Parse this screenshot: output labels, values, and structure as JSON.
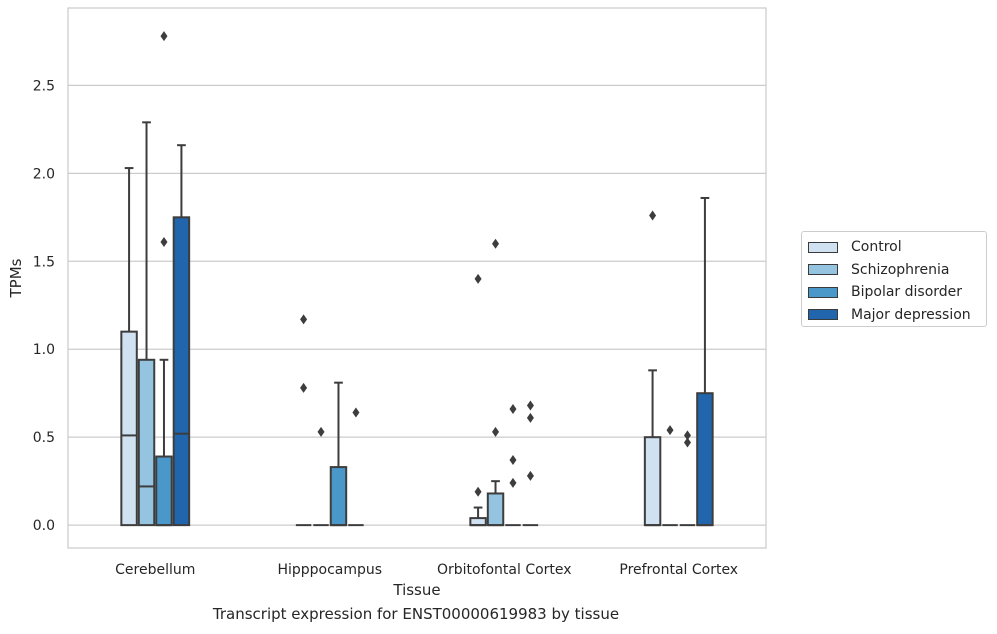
{
  "chart_data": {
    "type": "box",
    "title": "",
    "caption": "Transcript expression for ENST00000619983 by tissue",
    "xlabel": "Tissue",
    "ylabel": "TPMs",
    "ylim": [
      -0.13,
      2.94
    ],
    "yticks": [
      "0.0",
      "0.5",
      "1.0",
      "1.5",
      "2.0",
      "2.5"
    ],
    "grid": "horizontal",
    "legend_position": "right",
    "categories": [
      "Cerebellum",
      "Hipppocampus",
      "Orbitofontal Cortex",
      "Prefrontal Cortex"
    ],
    "series": [
      {
        "name": "Control",
        "color": "#d0e1f2",
        "boxes": [
          {
            "whisker_low": 0,
            "q1": 0,
            "median": 0.51,
            "q3": 1.1,
            "whisker_high": 2.03,
            "outliers": []
          },
          {
            "whisker_low": 0,
            "q1": 0,
            "median": 0,
            "q3": 0,
            "whisker_high": 0,
            "outliers": [
              1.17,
              0.78
            ]
          },
          {
            "whisker_low": 0,
            "q1": 0,
            "median": 0,
            "q3": 0.04,
            "whisker_high": 0.1,
            "outliers": [
              1.4,
              0.19
            ]
          },
          {
            "whisker_low": 0,
            "q1": 0,
            "median": 0,
            "q3": 0.5,
            "whisker_high": 0.88,
            "outliers": [
              1.76
            ]
          }
        ]
      },
      {
        "name": "Schizophrenia",
        "color": "#94c4df",
        "boxes": [
          {
            "whisker_low": 0,
            "q1": 0,
            "median": 0.22,
            "q3": 0.94,
            "whisker_high": 2.29,
            "outliers": []
          },
          {
            "whisker_low": 0,
            "q1": 0,
            "median": 0,
            "q3": 0,
            "whisker_high": 0,
            "outliers": [
              0.53
            ]
          },
          {
            "whisker_low": 0,
            "q1": 0,
            "median": 0,
            "q3": 0.18,
            "whisker_high": 0.25,
            "outliers": [
              1.6,
              0.53
            ]
          },
          {
            "whisker_low": 0,
            "q1": 0,
            "median": 0,
            "q3": 0,
            "whisker_high": 0,
            "outliers": [
              0.54
            ]
          }
        ]
      },
      {
        "name": "Bipolar disorder",
        "color": "#4a98c9",
        "boxes": [
          {
            "whisker_low": 0,
            "q1": 0,
            "median": 0,
            "q3": 0.39,
            "whisker_high": 0.94,
            "outliers": [
              2.78,
              1.61
            ]
          },
          {
            "whisker_low": 0,
            "q1": 0,
            "median": 0,
            "q3": 0.33,
            "whisker_high": 0.81,
            "outliers": []
          },
          {
            "whisker_low": 0,
            "q1": 0,
            "median": 0,
            "q3": 0,
            "whisker_high": 0,
            "outliers": [
              0.66,
              0.37,
              0.24
            ]
          },
          {
            "whisker_low": 0,
            "q1": 0,
            "median": 0,
            "q3": 0,
            "whisker_high": 0,
            "outliers": [
              0.51,
              0.47
            ]
          }
        ]
      },
      {
        "name": "Major depression",
        "color": "#2166ac",
        "boxes": [
          {
            "whisker_low": 0,
            "q1": 0,
            "median": 0.52,
            "q3": 1.75,
            "whisker_high": 2.16,
            "outliers": []
          },
          {
            "whisker_low": 0,
            "q1": 0,
            "median": 0,
            "q3": 0,
            "whisker_high": 0,
            "outliers": [
              0.64
            ]
          },
          {
            "whisker_low": 0,
            "q1": 0,
            "median": 0,
            "q3": 0,
            "whisker_high": 0,
            "outliers": [
              0.68,
              0.61,
              0.28
            ]
          },
          {
            "whisker_low": 0,
            "q1": 0,
            "median": 0,
            "q3": 0.75,
            "whisker_high": 1.86,
            "outliers": []
          }
        ]
      }
    ]
  }
}
